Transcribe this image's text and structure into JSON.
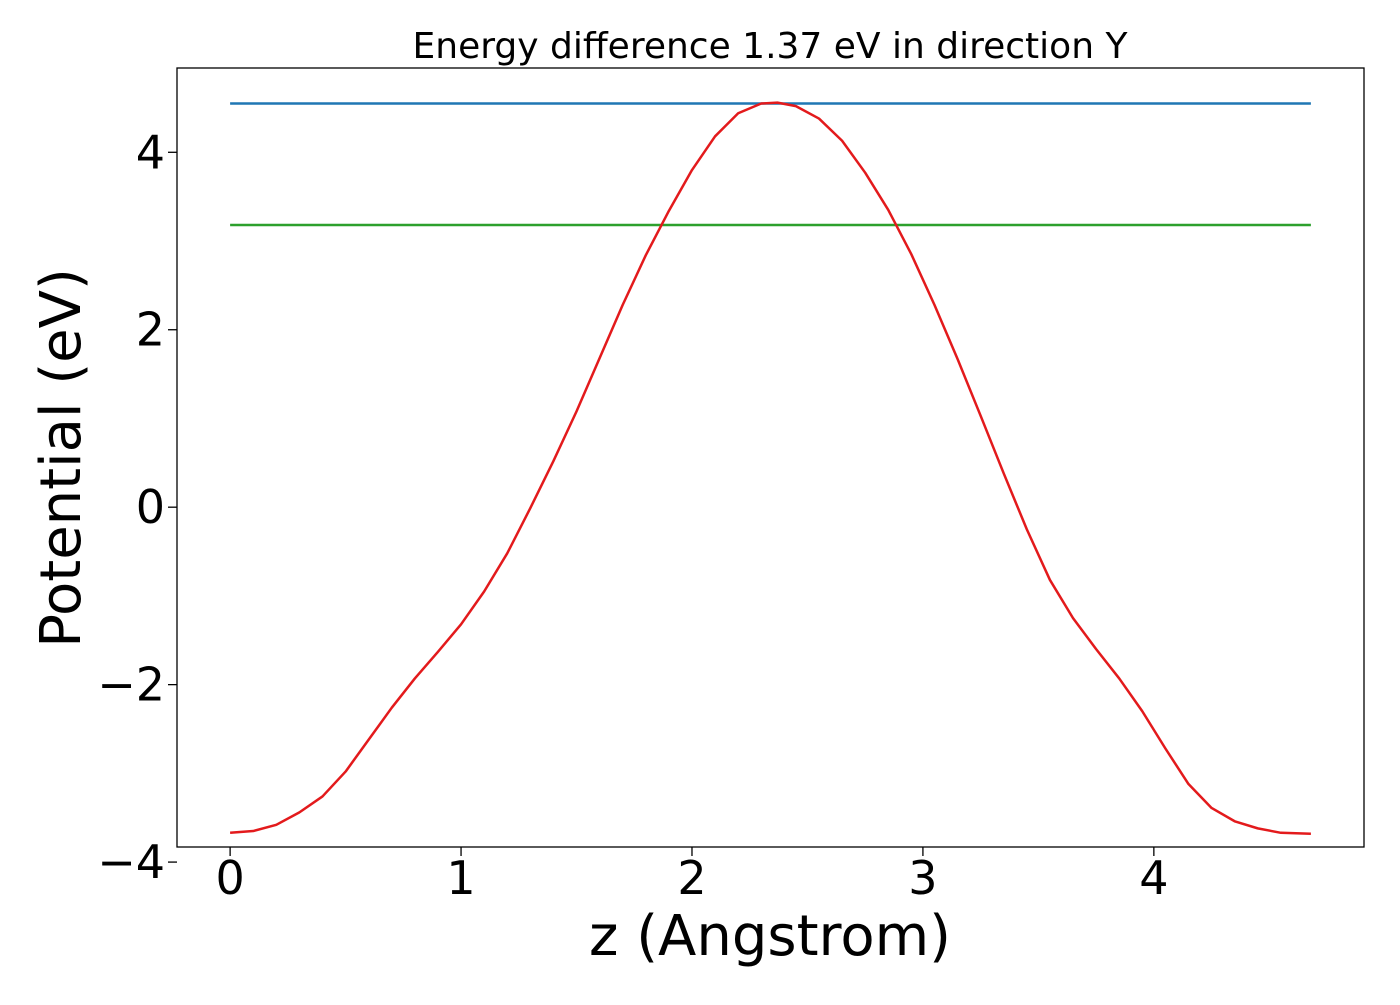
{
  "chart_data": {
    "type": "line",
    "title": "Energy difference 1.37 eV in direction Y",
    "xlabel": "z (Angstrom)",
    "ylabel": "Potential (eV)",
    "xlim": [
      -0.23,
      4.91
    ],
    "ylim": [
      -3.83,
      4.95
    ],
    "xticks": [
      0,
      1,
      2,
      3,
      4
    ],
    "xtick_labels": [
      "0",
      "1",
      "2",
      "3",
      "4"
    ],
    "yticks": [
      -4,
      -2,
      0,
      2,
      4
    ],
    "ytick_labels": [
      "−4",
      "−2",
      "0",
      "2",
      "4"
    ],
    "grid": false,
    "legend": "none",
    "series": [
      {
        "color": "#1f77b4",
        "kind": "hline",
        "x": [
          0,
          4.68
        ],
        "y": [
          4.55,
          4.55
        ]
      },
      {
        "color": "#2ca02c",
        "kind": "hline",
        "x": [
          0,
          4.68
        ],
        "y": [
          3.18,
          3.18
        ]
      },
      {
        "color": "#e31a1c",
        "kind": "curve",
        "x": [
          0,
          0.1,
          0.2,
          0.3,
          0.4,
          0.5,
          0.6,
          0.7,
          0.8,
          0.9,
          1.0,
          1.1,
          1.2,
          1.3,
          1.4,
          1.5,
          1.6,
          1.7,
          1.8,
          1.9,
          2.0,
          2.1,
          2.2,
          2.3,
          2.37,
          2.45,
          2.55,
          2.65,
          2.75,
          2.85,
          2.95,
          3.05,
          3.15,
          3.25,
          3.35,
          3.45,
          3.55,
          3.65,
          3.75,
          3.85,
          3.95,
          4.05,
          4.15,
          4.25,
          4.35,
          4.45,
          4.55,
          4.68
        ],
        "y": [
          -3.67,
          -3.65,
          -3.58,
          -3.44,
          -3.26,
          -2.98,
          -2.62,
          -2.26,
          -1.93,
          -1.63,
          -1.32,
          -0.95,
          -0.52,
          -0.01,
          0.52,
          1.08,
          1.68,
          2.28,
          2.84,
          3.34,
          3.8,
          4.18,
          4.44,
          4.55,
          4.56,
          4.52,
          4.38,
          4.13,
          3.77,
          3.35,
          2.85,
          2.28,
          1.67,
          1.03,
          0.38,
          -0.25,
          -0.82,
          -1.25,
          -1.6,
          -1.93,
          -2.3,
          -2.72,
          -3.12,
          -3.39,
          -3.54,
          -3.62,
          -3.67,
          -3.68
        ]
      }
    ]
  }
}
